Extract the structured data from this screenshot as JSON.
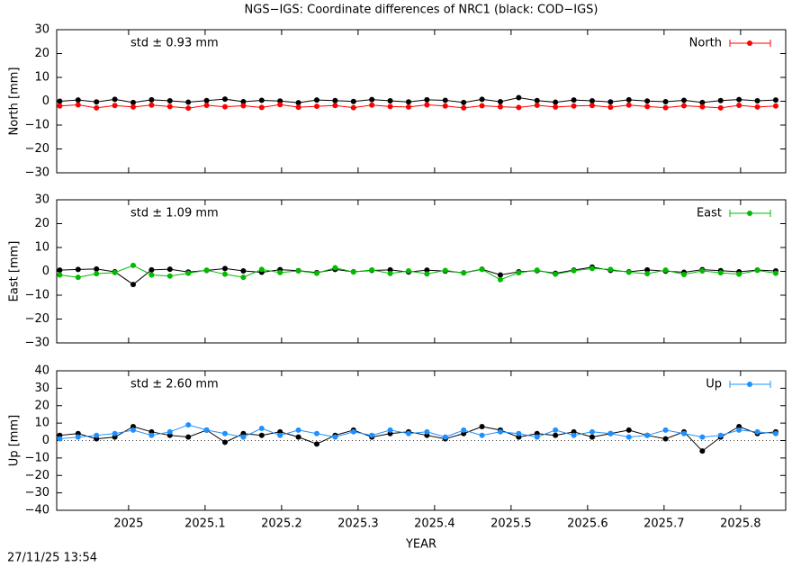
{
  "title": "NGS−IGS: Coordinate differences of NRC1 (black: COD−IGS)",
  "timestamp": "27/11/25 13:54",
  "chart_data": [
    {
      "type": "line",
      "ylabel": "North [mm]",
      "annotation": "std ± 0.93 mm",
      "annotation_color": "#ff0000",
      "xlim": [
        2024.906,
        2025.859
      ],
      "xticks": [
        2025,
        2025.1,
        2025.2,
        2025.3,
        2025.4,
        2025.5,
        2025.6,
        2025.7,
        2025.8
      ],
      "ylim": [
        -30,
        30
      ],
      "yticks": [
        {
          "value": -30,
          "label": "−30"
        },
        {
          "value": -20,
          "label": "−20"
        },
        {
          "value": -10,
          "label": "−10"
        },
        0,
        10,
        20,
        30
      ],
      "x": [
        2024.91,
        2024.934,
        2024.958,
        2024.982,
        2025.006,
        2025.03,
        2025.054,
        2025.078,
        2025.102,
        2025.126,
        2025.15,
        2025.174,
        2025.198,
        2025.222,
        2025.246,
        2025.27,
        2025.294,
        2025.318,
        2025.342,
        2025.366,
        2025.39,
        2025.414,
        2025.438,
        2025.462,
        2025.486,
        2025.51,
        2025.534,
        2025.558,
        2025.582,
        2025.606,
        2025.63,
        2025.654,
        2025.678,
        2025.702,
        2025.726,
        2025.75,
        2025.774,
        2025.798,
        2025.822,
        2025.846
      ],
      "series": [
        {
          "color": "#000000",
          "values": [
            0,
            0.5,
            -0.3,
            0.8,
            -0.5,
            0.6,
            0.2,
            -0.4,
            0.3,
            0.9,
            -0.2,
            0.4,
            0.1,
            -0.6,
            0.5,
            0.3,
            -0.1,
            0.7,
            0.2,
            -0.3,
            0.6,
            0.4,
            -0.5,
            0.8,
            -0.2,
            1.5,
            0.3,
            -0.4,
            0.5,
            0.2,
            -0.3,
            0.6,
            0.1,
            -0.2,
            0.4,
            -0.5,
            0.3,
            0.7,
            0.2,
            0.5
          ]
        },
        {
          "name": "North",
          "color": "#ff0000",
          "values": [
            -2,
            -1.5,
            -2.8,
            -1.8,
            -2.4,
            -1.6,
            -2.2,
            -2.9,
            -1.7,
            -2.3,
            -1.9,
            -2.6,
            -1.4,
            -2.5,
            -2.1,
            -1.8,
            -2.7,
            -1.6,
            -2.2,
            -2.4,
            -1.5,
            -2.0,
            -2.8,
            -1.9,
            -2.3,
            -2.6,
            -1.7,
            -2.4,
            -2.0,
            -1.8,
            -2.5,
            -1.6,
            -2.2,
            -2.7,
            -1.9,
            -2.3,
            -2.8,
            -1.7,
            -2.4,
            -2.0
          ]
        }
      ]
    },
    {
      "type": "line",
      "ylabel": "East [mm]",
      "annotation": "std ± 1.09 mm",
      "annotation_color": "#00bb00",
      "xlim": [
        2024.906,
        2025.859
      ],
      "xticks": [
        2025,
        2025.1,
        2025.2,
        2025.3,
        2025.4,
        2025.5,
        2025.6,
        2025.7,
        2025.8
      ],
      "ylim": [
        -30,
        30
      ],
      "yticks": [
        {
          "value": -30,
          "label": "−30"
        },
        {
          "value": -20,
          "label": "−20"
        },
        {
          "value": -10,
          "label": "−10"
        },
        0,
        10,
        20,
        30
      ],
      "x": [
        2024.91,
        2024.934,
        2024.958,
        2024.982,
        2025.006,
        2025.03,
        2025.054,
        2025.078,
        2025.102,
        2025.126,
        2025.15,
        2025.174,
        2025.198,
        2025.222,
        2025.246,
        2025.27,
        2025.294,
        2025.318,
        2025.342,
        2025.366,
        2025.39,
        2025.414,
        2025.438,
        2025.462,
        2025.486,
        2025.51,
        2025.534,
        2025.558,
        2025.582,
        2025.606,
        2025.63,
        2025.654,
        2025.678,
        2025.702,
        2025.726,
        2025.75,
        2025.774,
        2025.798,
        2025.822,
        2025.846
      ],
      "series": [
        {
          "color": "#000000",
          "values": [
            0.5,
            0.8,
            1.0,
            -0.2,
            -5.5,
            0.6,
            0.9,
            -0.3,
            0.4,
            1.2,
            0.2,
            -0.4,
            0.7,
            0.3,
            -0.5,
            0.8,
            -0.2,
            0.4,
            0.6,
            -0.3,
            0.5,
            0.1,
            -0.6,
            0.9,
            -1.5,
            -0.2,
            0.3,
            -0.8,
            0.5,
            1.8,
            0.4,
            -0.2,
            0.6,
            0.1,
            -0.4,
            0.7,
            0.3,
            -0.2,
            0.5,
            0.2
          ]
        },
        {
          "name": "East",
          "color": "#00bb00",
          "values": [
            -1.5,
            -2.5,
            -1.0,
            -0.5,
            2.5,
            -1.5,
            -2.0,
            -0.8,
            0.5,
            -1.2,
            -2.5,
            0.8,
            -0.5,
            0.2,
            -0.8,
            1.5,
            -0.3,
            0.6,
            -0.9,
            0.2,
            -1.1,
            0.4,
            -0.7,
            0.8,
            -3.5,
            -0.6,
            0.5,
            -1.2,
            0.3,
            1.2,
            0.8,
            -0.4,
            -1.0,
            0.5,
            -1.3,
            0.2,
            -0.6,
            -1.2,
            0.4,
            -0.8
          ]
        }
      ]
    },
    {
      "type": "line",
      "ylabel": "Up [mm]",
      "annotation": "std ± 2.60 mm",
      "annotation_color": "#1e90ff",
      "xlabel": "YEAR",
      "xlim": [
        2024.906,
        2025.859
      ],
      "xticks": [
        2025,
        2025.1,
        2025.2,
        2025.3,
        2025.4,
        2025.5,
        2025.6,
        2025.7,
        2025.8
      ],
      "ylim": [
        -40,
        40
      ],
      "yticks": [
        {
          "value": -40,
          "label": "−40"
        },
        {
          "value": -30,
          "label": "−30"
        },
        {
          "value": -20,
          "label": "−20"
        },
        {
          "value": -10,
          "label": "−10"
        },
        0,
        10,
        20,
        30,
        40
      ],
      "x": [
        2024.91,
        2024.934,
        2024.958,
        2024.982,
        2025.006,
        2025.03,
        2025.054,
        2025.078,
        2025.102,
        2025.126,
        2025.15,
        2025.174,
        2025.198,
        2025.222,
        2025.246,
        2025.27,
        2025.294,
        2025.318,
        2025.342,
        2025.366,
        2025.39,
        2025.414,
        2025.438,
        2025.462,
        2025.486,
        2025.51,
        2025.534,
        2025.558,
        2025.582,
        2025.606,
        2025.63,
        2025.654,
        2025.678,
        2025.702,
        2025.726,
        2025.75,
        2025.774,
        2025.798,
        2025.822,
        2025.846
      ],
      "series": [
        {
          "color": "#000000",
          "values": [
            3,
            4,
            1,
            2,
            8,
            5,
            3,
            2,
            6,
            -1,
            4,
            3,
            5,
            2,
            -2,
            3,
            6,
            2,
            4,
            5,
            3,
            1,
            4,
            8,
            6,
            2,
            4,
            3,
            5,
            2,
            4,
            6,
            3,
            1,
            5,
            -6,
            2,
            8,
            4,
            5
          ]
        },
        {
          "name": "Up",
          "color": "#1e90ff",
          "values": [
            1,
            2,
            3,
            4,
            6,
            3,
            5,
            9,
            6,
            4,
            2,
            7,
            3,
            6,
            4,
            2,
            5,
            3,
            6,
            4,
            5,
            2,
            6,
            3,
            5,
            4,
            2,
            6,
            3,
            5,
            4,
            2,
            3,
            6,
            4,
            2,
            3,
            6,
            5,
            4
          ]
        }
      ]
    }
  ]
}
